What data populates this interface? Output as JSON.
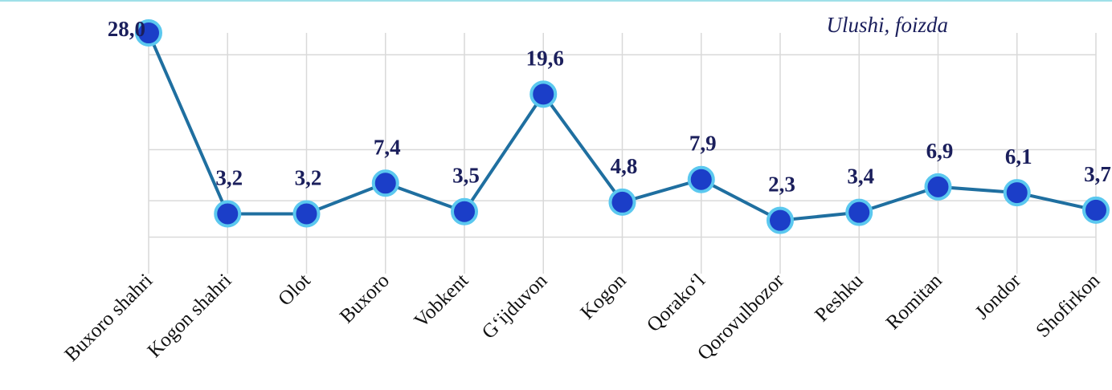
{
  "chart_data": {
    "type": "line",
    "annotation": "Ulushi, foizda",
    "categories": [
      "Buxoro shahri",
      "Kogon shahri",
      "Olot",
      "Buxoro",
      "Vobkent",
      "G‘ijduvon",
      "Kogon",
      "Qorako‘l",
      "Qorovulbozor",
      "Peshku",
      "Romitan",
      "Jondor",
      "Shofirkon"
    ],
    "series": [
      {
        "color": "#1f6fa0",
        "values": [
          28.0,
          3.2,
          3.2,
          7.4,
          3.5,
          19.6,
          4.8,
          7.9,
          2.3,
          3.4,
          6.9,
          6.1,
          3.7
        ],
        "value_labels": [
          "28,0",
          "3,2",
          "3,2",
          "7,4",
          "3,5",
          "19,6",
          "4,8",
          "7,9",
          "2,3",
          "3,4",
          "6,9",
          "6,1",
          "3,7"
        ]
      }
    ],
    "ylim": [
      -5,
      28
    ],
    "yticks": [
      0,
      5,
      12,
      25
    ],
    "grid": true
  }
}
